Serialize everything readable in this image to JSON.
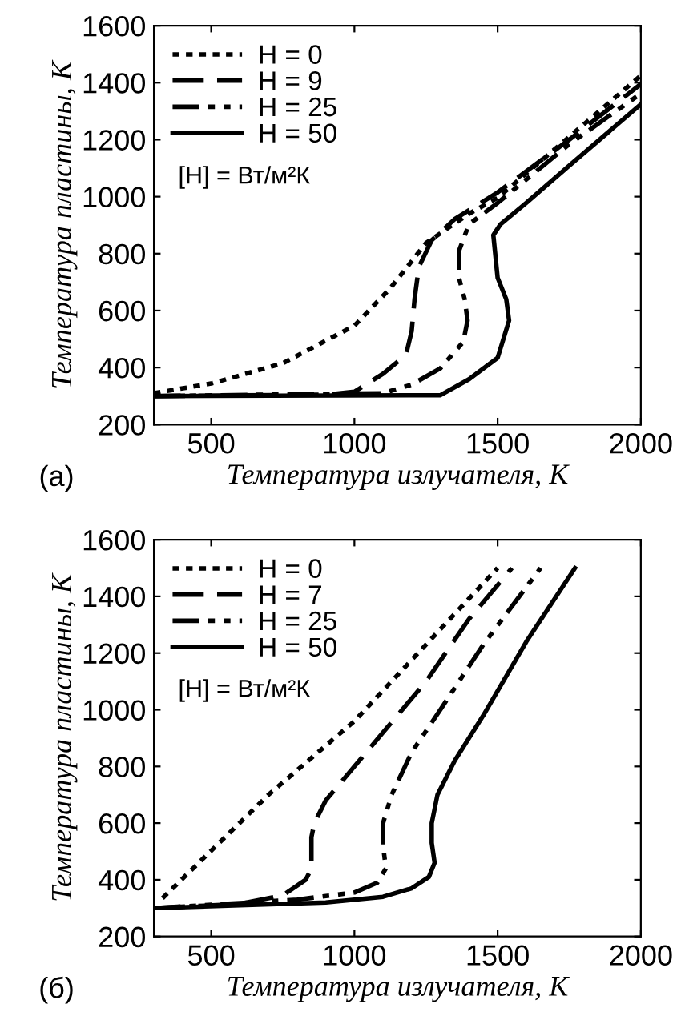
{
  "chart_data": [
    {
      "type": "line",
      "xlabel": "Температура излучателя, К",
      "ylabel": "Температура пластины, К",
      "xlim": [
        300,
        2000
      ],
      "ylim": [
        200,
        1600
      ],
      "xticks": [
        500,
        1000,
        1500,
        2000
      ],
      "yticks": [
        200,
        400,
        600,
        800,
        1000,
        1200,
        1400,
        1600
      ],
      "grid": false,
      "legend": "top left",
      "annotations": [
        "[H] = Вт/м²К",
        "(a)"
      ],
      "series": [
        {
          "name": "H = 0",
          "color": "#000000",
          "line_style": "dotted",
          "x": [
            300,
            500,
            750,
            1000,
            1125,
            1250,
            1400,
            1500,
            1750,
            2000
          ],
          "values": [
            310,
            344,
            415,
            547,
            678,
            837,
            940,
            996,
            1210,
            1425
          ]
        },
        {
          "name": "H = 9",
          "color": "#000000",
          "line_style": "dashed",
          "x": [
            300,
            900,
            1000,
            1100,
            1180,
            1200,
            1210,
            1225,
            1270,
            1350,
            1500,
            1750,
            2000
          ],
          "values": [
            300,
            305,
            315,
            378,
            444,
            528,
            640,
            753,
            847,
            921,
            1015,
            1200,
            1395
          ]
        },
        {
          "name": "H = 25",
          "color": "#000000",
          "line_style": "dashdot",
          "x": [
            300,
            1100,
            1200,
            1300,
            1380,
            1395,
            1385,
            1365,
            1365,
            1400,
            1500,
            1750,
            2000
          ],
          "values": [
            300,
            310,
            340,
            397,
            490,
            565,
            640,
            715,
            809,
            903,
            978,
            1184,
            1362
          ]
        },
        {
          "name": "H = 50",
          "color": "#000000",
          "line_style": "solid",
          "x": [
            300,
            1300,
            1400,
            1500,
            1540,
            1530,
            1500,
            1485,
            1510,
            1600,
            1750,
            2000
          ],
          "values": [
            300,
            303,
            359,
            434,
            565,
            640,
            715,
            865,
            903,
            978,
            1109,
            1324
          ]
        }
      ]
    },
    {
      "type": "line",
      "xlabel": "Температура излучателя, К",
      "ylabel": "Температура пластины, К",
      "xlim": [
        300,
        2000
      ],
      "ylim": [
        200,
        1600
      ],
      "xticks": [
        500,
        1000,
        1500,
        2000
      ],
      "yticks": [
        200,
        400,
        600,
        800,
        1000,
        1200,
        1400,
        1600
      ],
      "grid": false,
      "legend": "top left",
      "annotations": [
        "[H] = Вт/м²К",
        "(б)"
      ],
      "series": [
        {
          "name": "H = 0",
          "color": "#000000",
          "line_style": "dotted",
          "x": [
            330,
            700,
            1000,
            1250,
            1500
          ],
          "values": [
            335,
            700,
            960,
            1230,
            1500
          ]
        },
        {
          "name": "H = 7",
          "color": "#000000",
          "line_style": "dashed",
          "x": [
            300,
            600,
            750,
            830,
            850,
            850,
            860,
            900,
            1000,
            1100,
            1250,
            1400,
            1550
          ],
          "values": [
            300,
            315,
            345,
            400,
            440,
            550,
            600,
            680,
            800,
            920,
            1100,
            1320,
            1500
          ]
        },
        {
          "name": "H = 25",
          "color": "#000000",
          "line_style": "dashdot",
          "x": [
            300,
            800,
            1000,
            1080,
            1110,
            1100,
            1100,
            1130,
            1200,
            1300,
            1450,
            1650
          ],
          "values": [
            300,
            330,
            355,
            390,
            440,
            520,
            600,
            700,
            850,
            1000,
            1230,
            1500
          ]
        },
        {
          "name": "H = 50",
          "color": "#000000",
          "line_style": "solid",
          "x": [
            300,
            900,
            1100,
            1200,
            1260,
            1280,
            1270,
            1270,
            1290,
            1350,
            1450,
            1600,
            1770
          ],
          "values": [
            300,
            320,
            340,
            370,
            410,
            460,
            530,
            600,
            700,
            820,
            980,
            1240,
            1500
          ]
        }
      ]
    }
  ]
}
